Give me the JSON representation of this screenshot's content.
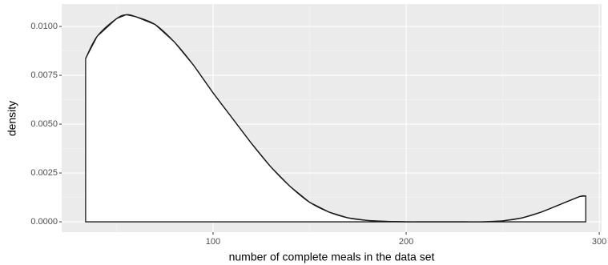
{
  "chart_data": {
    "type": "density",
    "x_label": "number of complete meals in the data set",
    "y_label": "density",
    "x": [
      34,
      40,
      50,
      55,
      60,
      70,
      80,
      90,
      100,
      110,
      120,
      130,
      140,
      150,
      160,
      170,
      180,
      190,
      200,
      210,
      220,
      230,
      240,
      250,
      260,
      270,
      280,
      290,
      293
    ],
    "values": [
      0.00836,
      0.0095,
      0.0104,
      0.0106,
      0.0105,
      0.0101,
      0.0092,
      0.008,
      0.0066,
      0.0053,
      0.004,
      0.0028,
      0.0018,
      0.001,
      0.0005,
      0.0002,
      7e-05,
      2e-05,
      0,
      0,
      0,
      0,
      0,
      5e-05,
      0.0002,
      0.0005,
      0.0009,
      0.0013,
      0.00132
    ],
    "fill": "#ffffff",
    "line_color": "#1a1a1a",
    "xlim": [
      21.6,
      301.2
    ],
    "xticks": [
      100,
      200,
      300
    ],
    "ylim": [
      -0.00053,
      0.01115
    ],
    "yticks": [
      {
        "value": 0,
        "label": "0.0000"
      },
      0.0025,
      {
        "value": 0.005,
        "label": "0.0050"
      },
      0.0075,
      {
        "value": 0.01,
        "label": "0.0100"
      }
    ],
    "grid": true
  }
}
